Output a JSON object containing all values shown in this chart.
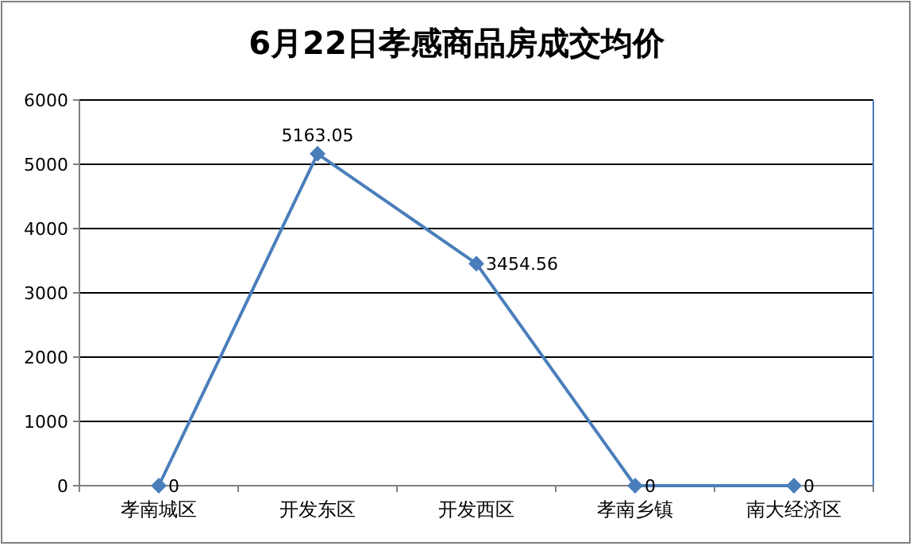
{
  "chart_data": {
    "type": "line",
    "title": "6月22日孝感商品房成交均价",
    "categories": [
      "孝南城区",
      "开发东区",
      "开发西区",
      "孝南乡镇",
      "南大经济区"
    ],
    "values": [
      0,
      5163.05,
      3454.56,
      0,
      0
    ],
    "color": "#4a7ebb",
    "ylim": [
      0,
      6000
    ],
    "yticks": [
      0,
      1000,
      2000,
      3000,
      4000,
      5000,
      6000
    ],
    "grid": "y",
    "marker": "diamond",
    "line_style": "solid",
    "data_labels": true
  }
}
